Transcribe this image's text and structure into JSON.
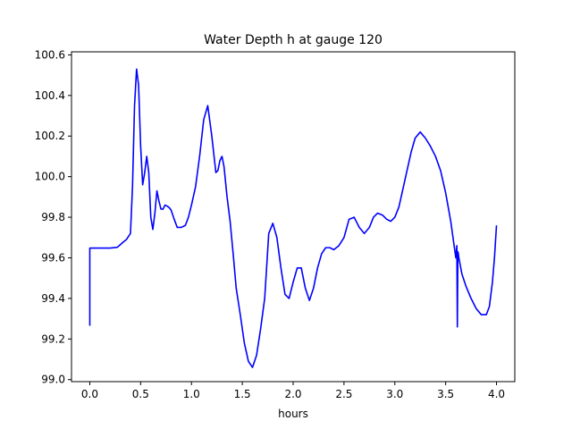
{
  "chart_data": {
    "type": "line",
    "title": "Water Depth h at gauge 120",
    "xlabel": "hours",
    "ylabel": "",
    "xlim": [
      -0.18,
      4.18
    ],
    "ylim": [
      98.99,
      100.615
    ],
    "xticks": [
      0.0,
      0.5,
      1.0,
      1.5,
      2.0,
      2.5,
      3.0,
      3.5,
      4.0
    ],
    "xtick_labels": [
      "0.0",
      "0.5",
      "1.0",
      "1.5",
      "2.0",
      "2.5",
      "3.0",
      "3.5",
      "4.0"
    ],
    "yticks": [
      99.0,
      99.2,
      99.4,
      99.6,
      99.8,
      100.0,
      100.2,
      100.4,
      100.6
    ],
    "ytick_labels": [
      "99.0",
      "99.2",
      "99.4",
      "99.6",
      "99.8",
      "100.0",
      "100.2",
      "100.4",
      "100.6"
    ],
    "grid": false,
    "series": [
      {
        "name": "h",
        "color": "#0000ff",
        "x": [
          0.0,
          0.0,
          0.03,
          0.1,
          0.2,
          0.27,
          0.3,
          0.33,
          0.36,
          0.4,
          0.42,
          0.44,
          0.46,
          0.48,
          0.5,
          0.52,
          0.54,
          0.56,
          0.58,
          0.6,
          0.62,
          0.64,
          0.66,
          0.68,
          0.7,
          0.72,
          0.74,
          0.76,
          0.78,
          0.8,
          0.83,
          0.86,
          0.9,
          0.94,
          0.97,
          1.0,
          1.04,
          1.08,
          1.12,
          1.16,
          1.2,
          1.24,
          1.26,
          1.28,
          1.3,
          1.32,
          1.35,
          1.38,
          1.41,
          1.44,
          1.48,
          1.52,
          1.56,
          1.6,
          1.64,
          1.68,
          1.72,
          1.76,
          1.8,
          1.84,
          1.88,
          1.92,
          1.96,
          2.0,
          2.04,
          2.08,
          2.12,
          2.16,
          2.2,
          2.24,
          2.28,
          2.32,
          2.36,
          2.4,
          2.45,
          2.5,
          2.55,
          2.6,
          2.65,
          2.7,
          2.75,
          2.79,
          2.83,
          2.88,
          2.92,
          2.96,
          3.0,
          3.04,
          3.08,
          3.12,
          3.16,
          3.2,
          3.25,
          3.3,
          3.35,
          3.4,
          3.45,
          3.5,
          3.55,
          3.6,
          3.61,
          3.615,
          3.62,
          3.625,
          3.63,
          3.66,
          3.7,
          3.75,
          3.8,
          3.85,
          3.9,
          3.93,
          3.96,
          3.98,
          4.0
        ],
        "values": [
          99.265,
          99.648,
          99.648,
          99.648,
          99.648,
          99.652,
          99.665,
          99.678,
          99.69,
          99.72,
          99.95,
          100.35,
          100.53,
          100.45,
          100.15,
          99.96,
          100.02,
          100.1,
          100.02,
          99.8,
          99.74,
          99.82,
          99.93,
          99.88,
          99.84,
          99.84,
          99.86,
          99.855,
          99.848,
          99.835,
          99.79,
          99.75,
          99.75,
          99.76,
          99.8,
          99.86,
          99.95,
          100.1,
          100.28,
          100.35,
          100.2,
          100.02,
          100.03,
          100.08,
          100.1,
          100.05,
          99.9,
          99.78,
          99.62,
          99.45,
          99.32,
          99.18,
          99.09,
          99.06,
          99.12,
          99.25,
          99.4,
          99.72,
          99.77,
          99.7,
          99.55,
          99.42,
          99.4,
          99.48,
          99.55,
          99.55,
          99.45,
          99.39,
          99.45,
          99.55,
          99.62,
          99.65,
          99.65,
          99.64,
          99.66,
          99.7,
          99.79,
          99.8,
          99.75,
          99.72,
          99.75,
          99.8,
          99.82,
          99.81,
          99.79,
          99.78,
          99.8,
          99.85,
          99.94,
          100.03,
          100.12,
          100.19,
          100.22,
          100.19,
          100.15,
          100.1,
          100.03,
          99.92,
          99.78,
          99.6,
          99.66,
          99.26,
          99.63,
          99.62,
          99.6,
          99.52,
          99.46,
          99.4,
          99.35,
          99.32,
          99.32,
          99.36,
          99.48,
          99.6,
          99.76
        ]
      }
    ]
  }
}
